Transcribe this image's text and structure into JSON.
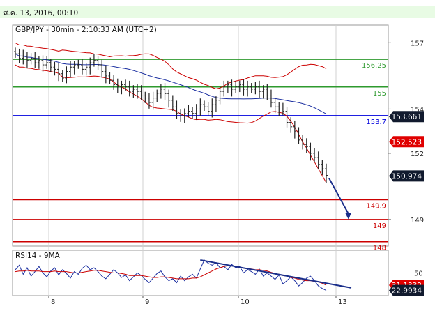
{
  "header": {
    "date_time": "ส.ค. 13, 2016, 00:10"
  },
  "chart_title": "GBP/JPY - 30min - 2:10:33 AM (UTC+2)",
  "indicator_title": "RSI14 - 9MA",
  "colors": {
    "price_bars": "#222222",
    "bollinger": "#cc0000",
    "moving_average": "#1a2ea0",
    "support_green": "#2e9a2e",
    "support_blue": "#0000dd",
    "support_red": "#cc0000",
    "arrow": "#1a2e8a",
    "rsi_line": "#1a2ea0",
    "rsi_ma": "#cc0000",
    "trendline": "#1a2e8a",
    "grid": "#d0d0d0"
  },
  "chart_data": [
    {
      "type": "line",
      "subtype": "candlestick-ohlc",
      "title": "GBP/JPY - 30min - 2:10:33 AM (UTC+2)",
      "x_tick_labels": [
        "8",
        "9",
        "10",
        "13"
      ],
      "y_tick_labels": [
        "157",
        "154",
        "152",
        "149"
      ],
      "ylim": [
        147.8,
        157.8
      ],
      "grid": true,
      "price_labels": [
        {
          "text": "153.661",
          "value": 153.661,
          "style": "dark-box"
        },
        {
          "text": "152.523",
          "value": 152.523,
          "style": "red-box"
        },
        {
          "text": "150.974",
          "value": 150.974,
          "style": "dark-box"
        }
      ],
      "levels": [
        {
          "label": "156.25",
          "value": 156.25,
          "color": "green"
        },
        {
          "label": "155",
          "value": 155.0,
          "color": "green"
        },
        {
          "label": "153.7",
          "value": 153.7,
          "color": "blue"
        },
        {
          "label": "149.9",
          "value": 149.9,
          "color": "red"
        },
        {
          "label": "149",
          "value": 149.0,
          "color": "red"
        },
        {
          "label": "148",
          "value": 148.0,
          "color": "red"
        }
      ],
      "series": [
        {
          "values": [
            156.5,
            156.3,
            156.4,
            156.2,
            156.3,
            156.1,
            156.2,
            156.0,
            156.1,
            155.9,
            155.8,
            155.6,
            155.4,
            155.7,
            155.9,
            156.0,
            156.0,
            155.8,
            155.9,
            156.1,
            156.2,
            156.0,
            155.7,
            155.5,
            155.3,
            155.1,
            155.0,
            155.1,
            155.0,
            154.8,
            154.9,
            154.8,
            154.6,
            154.5,
            154.3,
            154.5,
            154.7,
            154.9,
            154.7,
            154.4,
            154.1,
            153.8,
            153.7,
            153.8,
            153.9,
            153.8,
            154.0,
            154.2,
            154.1,
            153.9,
            154.2,
            154.4,
            154.8,
            155.0,
            155.1,
            154.9,
            155.0,
            155.1,
            154.9,
            155.0,
            154.9,
            155.0,
            154.8,
            154.9,
            154.6,
            154.3,
            154.1,
            154.0,
            153.9,
            153.4,
            153.2,
            153.0,
            152.6,
            152.4,
            152.3,
            152.0,
            151.8,
            151.5,
            151.3,
            151.0
          ]
        }
      ]
    },
    {
      "type": "line",
      "title": "RSI14 - 9MA",
      "y_tick_labels": [
        "50"
      ],
      "ylim": [
        15,
        85
      ],
      "value_labels": [
        {
          "text": "31.1332",
          "value": 31.1332,
          "style": "red-box"
        },
        {
          "text": "22.9934",
          "value": 22.9934,
          "style": "dark-box"
        }
      ],
      "series": [
        {
          "values": [
            55,
            62,
            48,
            58,
            45,
            52,
            60,
            50,
            44,
            53,
            58,
            47,
            55,
            49,
            42,
            52,
            48,
            57,
            62,
            55,
            58,
            52,
            45,
            41,
            48,
            55,
            50,
            43,
            47,
            38,
            44,
            50,
            46,
            40,
            35,
            42,
            49,
            53,
            44,
            38,
            41,
            35,
            45,
            38,
            44,
            48,
            42,
            56,
            70,
            65,
            62,
            66,
            58,
            60,
            55,
            63,
            58,
            60,
            50,
            55,
            52,
            48,
            56,
            45,
            50,
            45,
            40,
            47,
            33,
            38,
            44,
            38,
            30,
            35,
            42,
            45,
            38,
            30,
            26,
            23
          ]
        },
        {
          "values": [
            52,
            53,
            53,
            54,
            53,
            53,
            53,
            52,
            52,
            52,
            53,
            52,
            52,
            52,
            51,
            50,
            50,
            51,
            52,
            53,
            54,
            54,
            53,
            52,
            51,
            50,
            50,
            49,
            48,
            46,
            46,
            46,
            46,
            45,
            44,
            43,
            43,
            44,
            44,
            43,
            42,
            41,
            41,
            41,
            41,
            42,
            42,
            44,
            47,
            50,
            53,
            56,
            58,
            60,
            61,
            61,
            60,
            59,
            58,
            57,
            56,
            55,
            55,
            54,
            53,
            51,
            49,
            48,
            46,
            45,
            43,
            42,
            40,
            39,
            38,
            38,
            37,
            36,
            34,
            31
          ]
        }
      ]
    }
  ]
}
